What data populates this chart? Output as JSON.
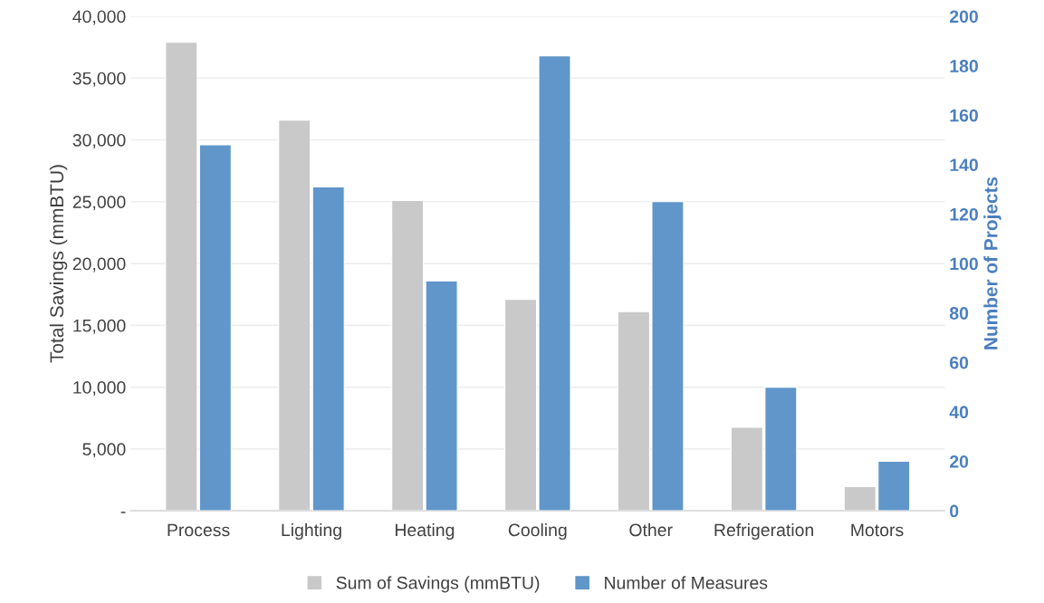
{
  "chart_data": {
    "type": "bar",
    "ylabel": "Total Savings (mmBTU)",
    "y2label": "Number of Projects",
    "categories": [
      "Process",
      "Lighting",
      "Heating",
      "Cooling",
      "Other",
      "Refrigeration",
      "Motors"
    ],
    "series": [
      {
        "name": "Sum of Savings (mmBTU)",
        "color": "#c9c9c9",
        "values": [
          37900,
          31600,
          25100,
          17100,
          16100,
          6750,
          1950
        ]
      },
      {
        "name": "Number of Measures",
        "color": "#6096c9",
        "axis": "y2",
        "values": [
          148,
          131,
          93,
          184,
          125,
          50,
          20
        ]
      }
    ],
    "ylim": [
      0,
      40000
    ],
    "yticks": [
      {
        "value": 0,
        "label": "-"
      },
      {
        "value": 5000,
        "label": "5,000"
      },
      {
        "value": 10000,
        "label": "10,000"
      },
      {
        "value": 15000,
        "label": "15,000"
      },
      {
        "value": 20000,
        "label": "20,000"
      },
      {
        "value": 25000,
        "label": "25,000"
      },
      {
        "value": 30000,
        "label": "30,000"
      },
      {
        "value": 35000,
        "label": "35,000"
      },
      {
        "value": 40000,
        "label": "40,000"
      }
    ],
    "y2lim": [
      0,
      200
    ],
    "y2ticks": [
      0,
      20,
      40,
      60,
      80,
      100,
      120,
      140,
      160,
      180,
      200
    ],
    "grid": "y",
    "legend": "bottom"
  }
}
